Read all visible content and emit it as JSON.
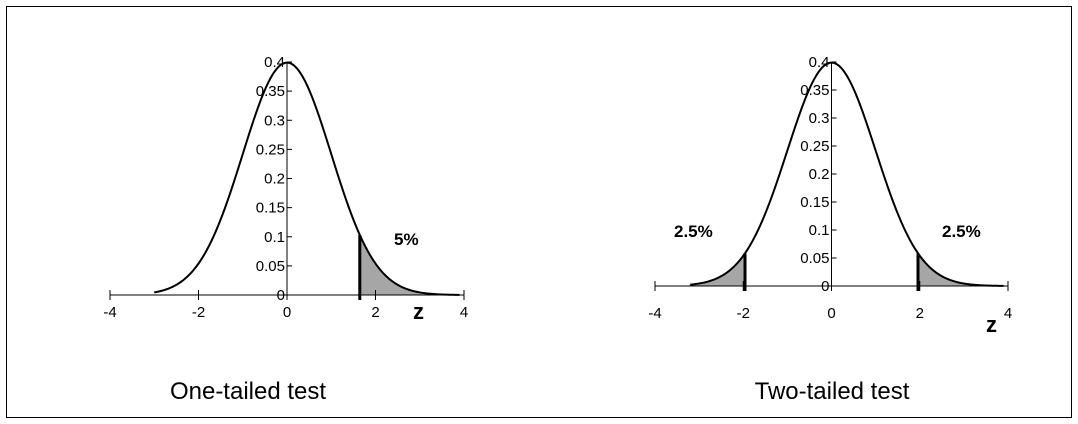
{
  "chart_data": [
    {
      "type": "area",
      "caption": "One-tailed test",
      "xlabel": "z",
      "ylabel": "",
      "xlim": [
        -4,
        4
      ],
      "ylim": [
        0,
        0.4
      ],
      "x_ticks": [
        -4,
        -2,
        0,
        2,
        4
      ],
      "y_ticks": [
        0,
        0.05,
        0.1,
        0.15,
        0.2,
        0.25,
        0.3,
        0.35,
        0.4
      ],
      "curve": {
        "name": "",
        "function": "standard normal density",
        "x_range": [
          -3,
          3.9
        ]
      },
      "shaded_regions": [
        {
          "x_from": 1.645,
          "x_to": 3.9,
          "label": "5%"
        }
      ],
      "critical_lines": [
        1.645
      ]
    },
    {
      "type": "area",
      "caption": "Two-tailed test",
      "xlabel": "z",
      "ylabel": "",
      "xlim": [
        -4,
        4
      ],
      "ylim": [
        0,
        0.4
      ],
      "x_ticks": [
        -4,
        -2,
        0,
        2,
        4
      ],
      "y_ticks": [
        0,
        0.05,
        0.1,
        0.15,
        0.2,
        0.25,
        0.3,
        0.35,
        0.4
      ],
      "curve": {
        "name": "",
        "function": "standard normal density",
        "x_range": [
          -3.2,
          3.9
        ]
      },
      "shaded_regions": [
        {
          "x_from": -3.2,
          "x_to": -1.96,
          "label": "2.5%"
        },
        {
          "x_from": 1.96,
          "x_to": 3.9,
          "label": "2.5%"
        }
      ],
      "critical_lines": [
        -1.96,
        1.96
      ]
    }
  ],
  "colors": {
    "curve": "#000000",
    "shade": "#a6a6a6",
    "axis": "#000000"
  }
}
